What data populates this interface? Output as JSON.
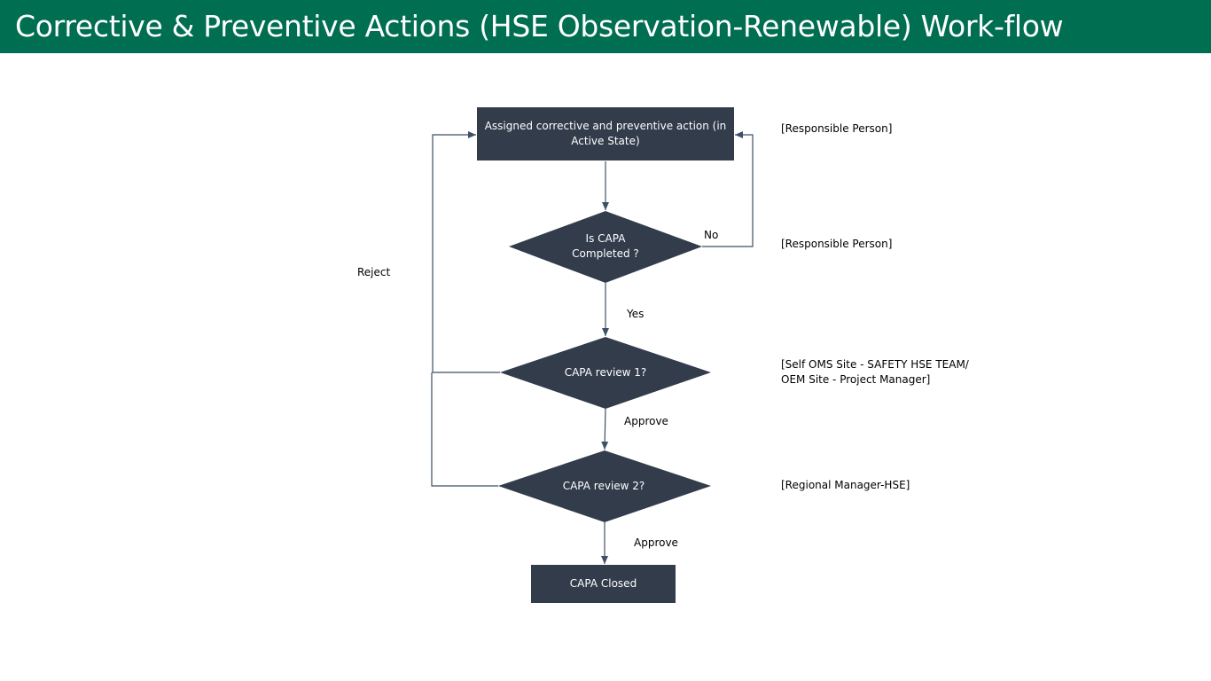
{
  "header": {
    "title": "Corrective & Preventive Actions (HSE Observation-Renewable) Work-flow"
  },
  "colors": {
    "header_bg": "#006e51",
    "shape_fill": "#323c4b",
    "connector": "#3e4f66",
    "text_on_shape": "#ffffff"
  },
  "flow": {
    "assigned_action": "Assigned corrective and preventive action (in Active State)",
    "is_capa_completed": "Is  CAPA\nCompleted  ?",
    "capa_review_1": "CAPA review 1?",
    "capa_review_2": "CAPA review 2?",
    "capa_closed": "CAPA Closed"
  },
  "edge_labels": {
    "no": "No",
    "yes": "Yes",
    "approve_1": "Approve",
    "approve_2": "Approve",
    "reject": "Reject"
  },
  "roles": {
    "assigned_action": "[Responsible  Person]",
    "is_capa_completed": "[Responsible  Person]",
    "capa_review_1": "[Self OMS Site - SAFETY HSE TEAM/\nOEM Site - Project Manager]",
    "capa_review_2": "[Regional Manager-HSE]"
  }
}
